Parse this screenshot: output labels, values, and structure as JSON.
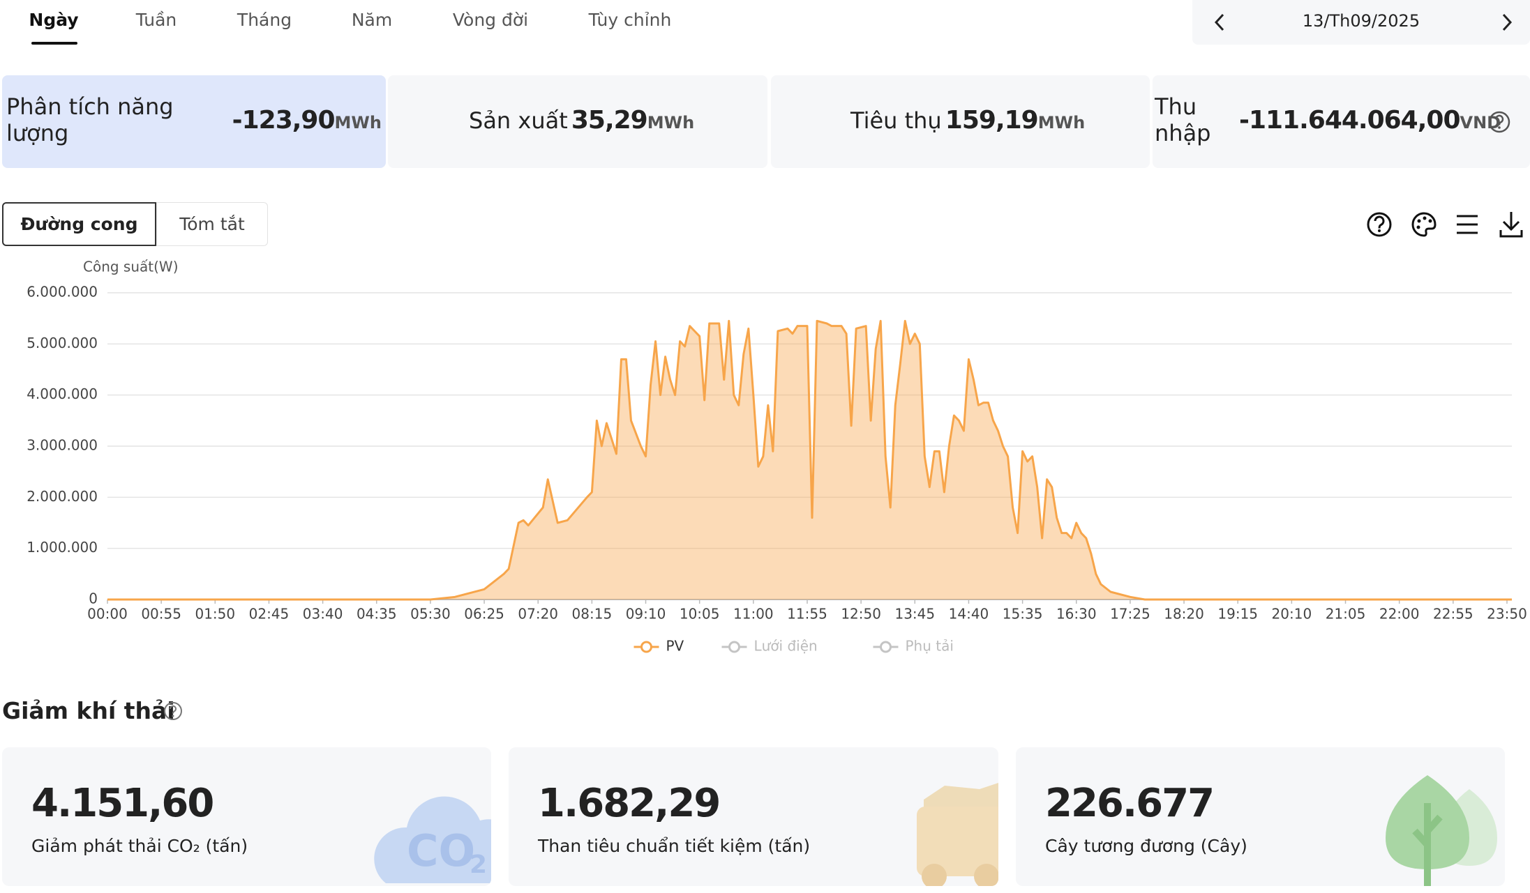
{
  "tabs": [
    "Ngày",
    "Tuần",
    "Tháng",
    "Năm",
    "Vòng đời",
    "Tùy chỉnh"
  ],
  "date": "13/Th09/2025",
  "summary": [
    {
      "label": "Phân tích năng lượng",
      "value": "-123,90",
      "unit": "MWh"
    },
    {
      "label": "Sản xuất",
      "value": "35,29",
      "unit": "MWh"
    },
    {
      "label": "Tiêu thụ",
      "value": "159,19",
      "unit": "MWh"
    },
    {
      "label": "Thu nhập",
      "value": "-111.644.064,00",
      "unit": "VND"
    }
  ],
  "view_buttons": [
    "Đường cong",
    "Tóm tắt"
  ],
  "chart_data": {
    "type": "area",
    "y_label": "Công suất(W)",
    "x": [
      "00:00",
      "05:30",
      "05:55",
      "06:25",
      "06:45",
      "06:50",
      "07:00",
      "07:05",
      "07:10",
      "07:25",
      "07:30",
      "07:40",
      "07:50",
      "08:10",
      "08:15",
      "08:20",
      "08:25",
      "08:30",
      "08:40",
      "08:45",
      "08:50",
      "08:55",
      "09:05",
      "09:10",
      "09:15",
      "09:20",
      "09:25",
      "09:30",
      "09:35",
      "09:40",
      "09:45",
      "09:50",
      "09:55",
      "10:00",
      "10:05",
      "10:10",
      "10:15",
      "10:25",
      "10:30",
      "10:35",
      "10:40",
      "10:45",
      "10:50",
      "10:55",
      "11:00",
      "11:05",
      "11:10",
      "11:15",
      "11:20",
      "11:25",
      "11:35",
      "11:40",
      "11:45",
      "11:55",
      "12:00",
      "12:05",
      "12:15",
      "12:20",
      "12:30",
      "12:35",
      "12:40",
      "12:45",
      "12:55",
      "13:00",
      "13:05",
      "13:10",
      "13:15",
      "13:20",
      "13:25",
      "13:30",
      "13:35",
      "13:40",
      "13:45",
      "13:50",
      "13:55",
      "14:00",
      "14:05",
      "14:10",
      "14:15",
      "14:20",
      "14:25",
      "14:30",
      "14:35",
      "14:40",
      "14:45",
      "14:50",
      "14:55",
      "15:00",
      "15:05",
      "15:10",
      "15:15",
      "15:20",
      "15:25",
      "15:30",
      "15:35",
      "15:40",
      "15:45",
      "15:50",
      "15:55",
      "16:00",
      "16:05",
      "16:10",
      "16:15",
      "16:20",
      "16:25",
      "16:30",
      "16:35",
      "16:40",
      "16:45",
      "16:50",
      "16:55",
      "17:05",
      "17:25",
      "17:40",
      "23:55"
    ],
    "series": [
      {
        "name": "PV",
        "color": "#f7a54a",
        "values": [
          0,
          0,
          50000,
          200000,
          500000,
          600000,
          1500000,
          1550000,
          1450000,
          1800000,
          2350000,
          1500000,
          1550000,
          2000000,
          2100000,
          3500000,
          3000000,
          3450000,
          2850000,
          4700000,
          4700000,
          3500000,
          3000000,
          2800000,
          4200000,
          5050000,
          4000000,
          4750000,
          4300000,
          4000000,
          5050000,
          4950000,
          5350000,
          5250000,
          5150000,
          3900000,
          5400000,
          5400000,
          4300000,
          5450000,
          4000000,
          3800000,
          4800000,
          5300000,
          4000000,
          2600000,
          2800000,
          3800000,
          2900000,
          5250000,
          5300000,
          5200000,
          5350000,
          5350000,
          1600000,
          5450000,
          5400000,
          5350000,
          5350000,
          5200000,
          3400000,
          5300000,
          5350000,
          3500000,
          4900000,
          5450000,
          2800000,
          1800000,
          3800000,
          4600000,
          5450000,
          5000000,
          5200000,
          5000000,
          2800000,
          2200000,
          2900000,
          2900000,
          2100000,
          3000000,
          3600000,
          3500000,
          3300000,
          4700000,
          4300000,
          3800000,
          3850000,
          3850000,
          3500000,
          3300000,
          3000000,
          2800000,
          1800000,
          1300000,
          2900000,
          2700000,
          2800000,
          2200000,
          1200000,
          2350000,
          2200000,
          1600000,
          1300000,
          1300000,
          1200000,
          1500000,
          1300000,
          1200000,
          900000,
          500000,
          300000,
          150000,
          50000,
          0,
          0
        ]
      },
      {
        "name": "Lưới điện",
        "color": "#c4c4c4",
        "visible": false
      },
      {
        "name": "Phụ tải",
        "color": "#c4c4c4",
        "visible": false
      }
    ],
    "xlim": [
      "00:00",
      "23:55"
    ],
    "xticks": [
      "00:00",
      "00:55",
      "01:50",
      "02:45",
      "03:40",
      "04:35",
      "05:30",
      "06:25",
      "07:20",
      "08:15",
      "09:10",
      "10:05",
      "11:00",
      "11:55",
      "12:50",
      "13:45",
      "14:40",
      "15:35",
      "16:30",
      "17:25",
      "18:20",
      "19:15",
      "20:10",
      "21:05",
      "22:00",
      "22:55",
      "23:50"
    ],
    "ylim": [
      0,
      6000000
    ],
    "yticks": [
      0,
      {
        "value": 1000000,
        "label": "1.000.000"
      },
      {
        "value": 2000000,
        "label": "2.000.000"
      },
      {
        "value": 3000000,
        "label": "3.000.000"
      },
      {
        "value": 4000000,
        "label": "4.000.000"
      },
      {
        "value": 5000000,
        "label": "5.000.000"
      },
      {
        "value": 6000000,
        "label": "6.000.000"
      }
    ],
    "grid": true,
    "legend": "bottom"
  },
  "emission": {
    "title": "Giảm khí thải",
    "cards": [
      {
        "value": "4.151,60",
        "label": "Giảm phát thải CO₂ (tấn)"
      },
      {
        "value": "1.682,29",
        "label": "Than tiêu chuẩn tiết kiệm (tấn)"
      },
      {
        "value": "226.677",
        "label": "Cây tương đương (Cây)"
      }
    ]
  }
}
